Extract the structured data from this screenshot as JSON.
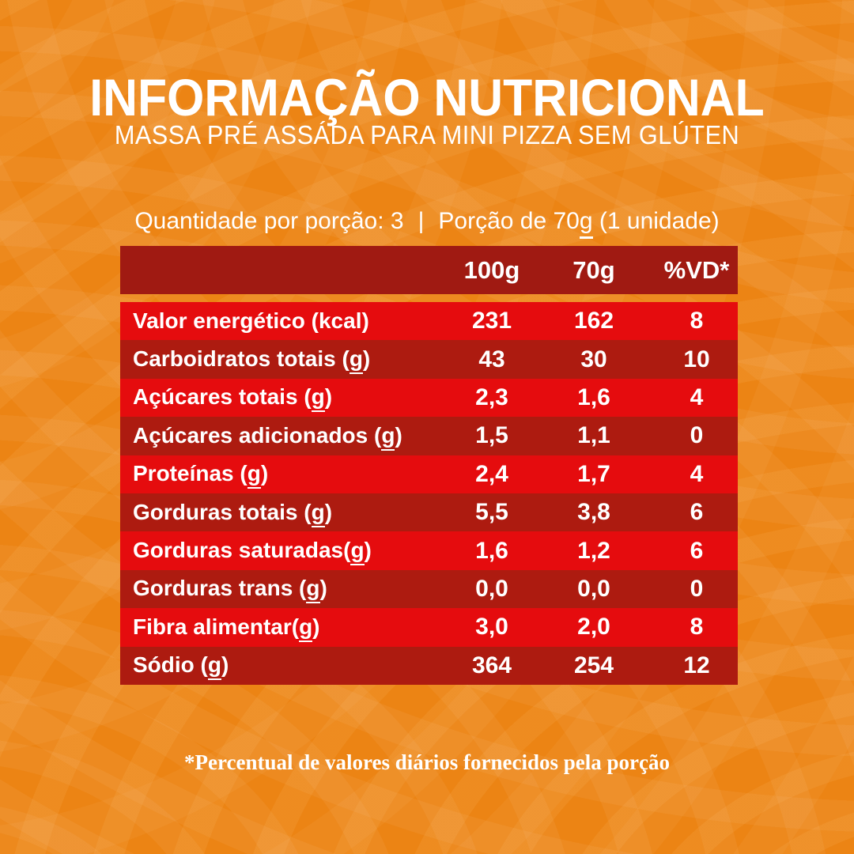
{
  "colors": {
    "background": "#EC8414",
    "header_row": "#A01A12",
    "row_bright": "#E50C0E",
    "row_dark": "#AD1B10",
    "text": "#FFFFFF"
  },
  "header": {
    "title": "INFORMAÇÃO NUTRICIONAL",
    "subtitle": "MASSA PRÉ ASSÁDA PARA MINI PIZZA SEM GLÚTEN"
  },
  "serving": {
    "quantity": "Quantidade por porção: 3",
    "separator": "|",
    "portion_prefix": "Porção de ",
    "portion_amount": "70g",
    "portion_suffix": " (1 unidade)"
  },
  "table": {
    "columns": [
      "100g",
      "70g",
      "%VD*"
    ],
    "rows": [
      {
        "label": "Valor energético",
        "unit": " (kcal)",
        "values": [
          "231",
          "162",
          "8"
        ]
      },
      {
        "label": "Carboidratos totais",
        "unit": " (g)",
        "values": [
          "43",
          "30",
          "10"
        ]
      },
      {
        "label": "Açúcares totais",
        "unit": " (g)",
        "values": [
          "2,3",
          "1,6",
          "4"
        ]
      },
      {
        "label": "Açúcares adicionados",
        "unit": " (g)",
        "values": [
          "1,5",
          "1,1",
          "0"
        ]
      },
      {
        "label": "Proteínas",
        "unit": " (g)",
        "values": [
          "2,4",
          "1,7",
          "4"
        ]
      },
      {
        "label": "Gorduras totais",
        "unit": " (g)",
        "values": [
          "5,5",
          "3,8",
          "6"
        ]
      },
      {
        "label": "Gorduras saturadas",
        "unit": "(g)",
        "values": [
          "1,6",
          "1,2",
          "6"
        ]
      },
      {
        "label": "Gorduras trans",
        "unit": " (g)",
        "values": [
          "0,0",
          "0,0",
          "0"
        ]
      },
      {
        "label": "Fibra alimentar",
        "unit": "(g)",
        "values": [
          "3,0",
          "2,0",
          "8"
        ]
      },
      {
        "label": "Sódio",
        "unit": " (g)",
        "values": [
          "364",
          "254",
          "12"
        ]
      }
    ]
  },
  "footnote": "*Percentual de valores diários fornecidos pela porção"
}
